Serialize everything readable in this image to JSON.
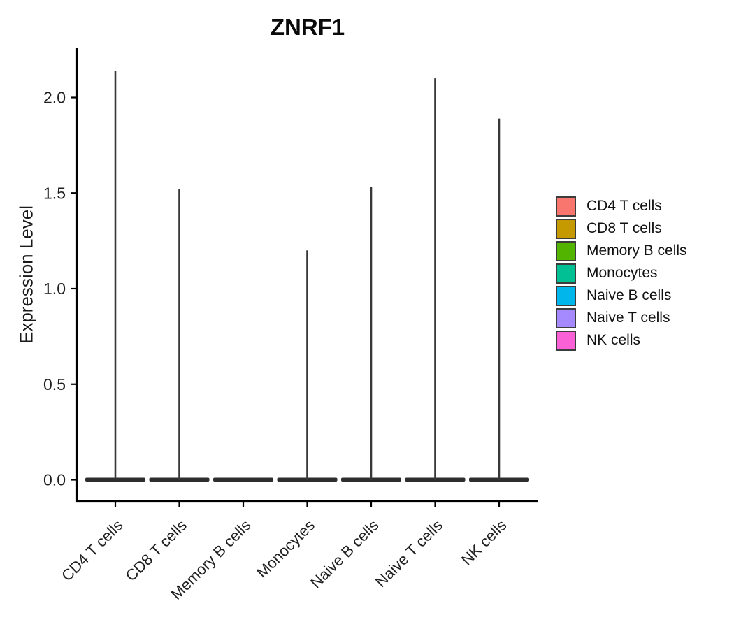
{
  "chart_data": {
    "type": "violin",
    "title": "ZNRF1",
    "xlabel": "",
    "ylabel": "Expression Level",
    "categories": [
      "CD4 T cells",
      "CD8 T cells",
      "Memory B cells",
      "Monocytes",
      "Naive B cells",
      "Naive T cells",
      "NK cells"
    ],
    "series": [
      {
        "name": "CD4 T cells",
        "color": "#F8766D",
        "max_expression": 2.14,
        "bulk_at": 0.0
      },
      {
        "name": "CD8 T cells",
        "color": "#C49A00",
        "max_expression": 1.52,
        "bulk_at": 0.0
      },
      {
        "name": "Memory B cells",
        "color": "#53B400",
        "max_expression": 0.0,
        "bulk_at": 0.0
      },
      {
        "name": "Monocytes",
        "color": "#00C094",
        "max_expression": 1.2,
        "bulk_at": 0.0
      },
      {
        "name": "Naive B cells",
        "color": "#00B6EB",
        "max_expression": 1.53,
        "bulk_at": 0.0
      },
      {
        "name": "Naive T cells",
        "color": "#A58AFF",
        "max_expression": 2.1,
        "bulk_at": 0.0
      },
      {
        "name": "NK cells",
        "color": "#FB61D7",
        "max_expression": 1.89,
        "bulk_at": 0.0
      }
    ],
    "yticks": [
      0.0,
      0.5,
      1.0,
      1.5,
      2.0
    ],
    "ylim": [
      -0.11,
      2.26
    ],
    "grid": false,
    "legend_position": "right",
    "shape_note": "distributions collapsed at 0 (wide flat base) with thin spike up to max_expression"
  },
  "colors": {
    "axis": "#000000",
    "tick_text": "#1f1f1f",
    "violin_outline": "#2E2E2E",
    "spike": "#383838",
    "background": "#FFFFFF"
  }
}
